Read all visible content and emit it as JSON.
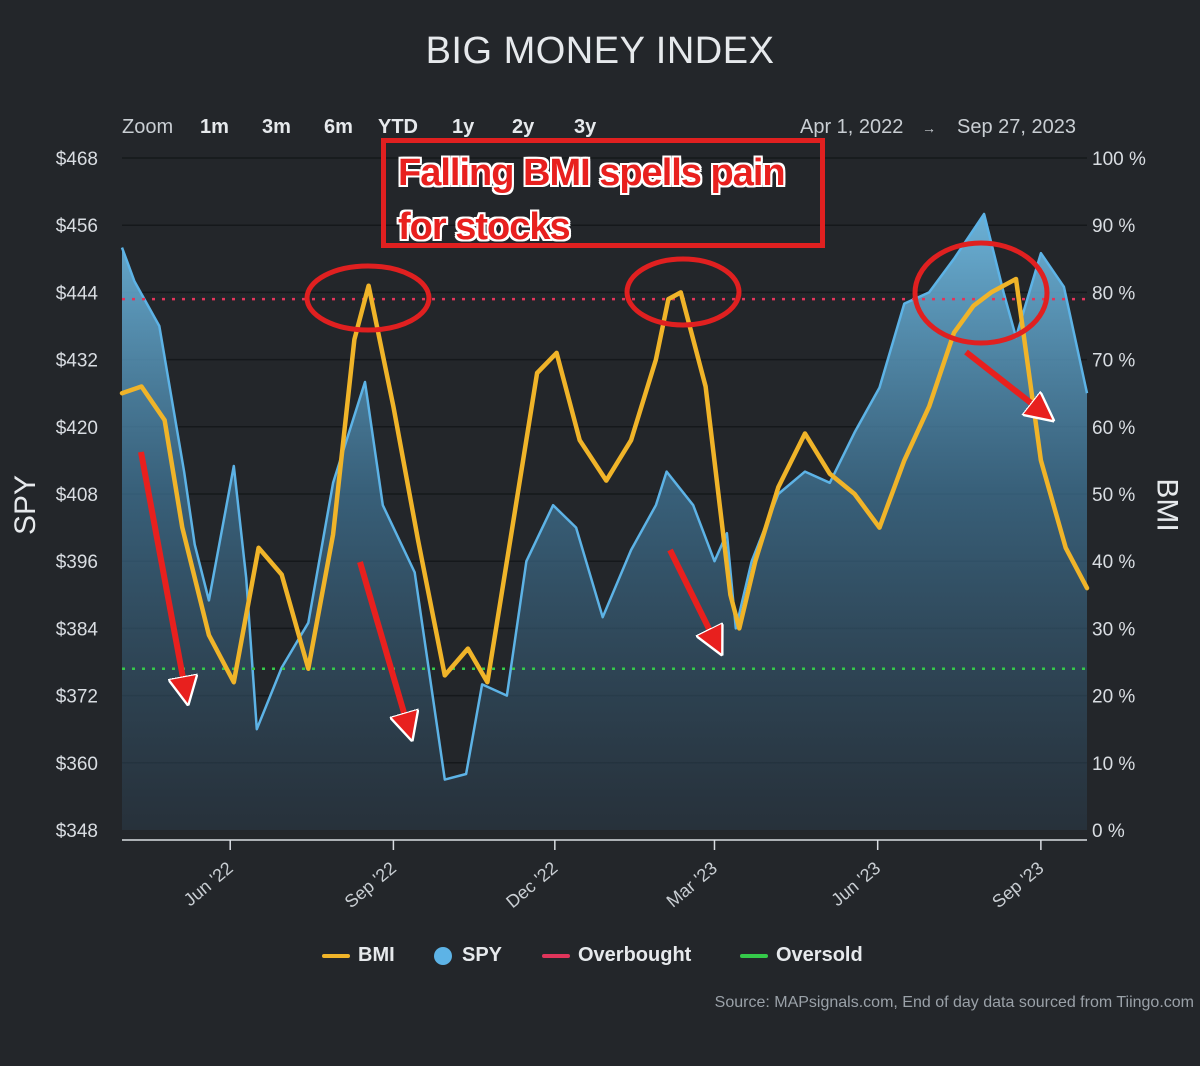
{
  "title": "BIG MONEY INDEX",
  "zoom": {
    "label": "Zoom",
    "buttons": [
      "1m",
      "3m",
      "6m",
      "YTD",
      "1y",
      "2y",
      "3y"
    ]
  },
  "date_range": {
    "from": "Apr 1, 2022",
    "arrow": "→",
    "to": "Sep 27, 2023"
  },
  "annotation": {
    "line1": "Falling BMI spells pain",
    "line2": "for stocks"
  },
  "source": "Source: MAPsignals.com, End of day data sourced from Tiingo.com",
  "colors": {
    "background": "#23262a",
    "bmi": "#f0b429",
    "spy": "#5db3e6",
    "overbought": "#e0355b",
    "oversold": "#35c94a",
    "annotation": "#e02020"
  },
  "chart_data": {
    "type": "line",
    "title": "BIG MONEY INDEX",
    "ylabel_left": "SPY",
    "ylabel_right": "BMI",
    "x_ticks": [
      "Jun '22",
      "Sep '22",
      "Dec '22",
      "Mar '23",
      "Jun '23",
      "Sep '23"
    ],
    "x_range": [
      "2022-04-01",
      "2023-09-27"
    ],
    "y_left_ticks": [
      "$468",
      "$456",
      "$444",
      "$432",
      "$420",
      "$408",
      "$396",
      "$384",
      "$372",
      "$360",
      "$348"
    ],
    "y_left_range": [
      348,
      468
    ],
    "y_right_ticks": [
      "100 %",
      "90 %",
      "80 %",
      "70 %",
      "60 %",
      "50 %",
      "40 %",
      "30 %",
      "20 %",
      "10 %",
      "0 %"
    ],
    "y_right_range": [
      0,
      100
    ],
    "overbought": 79,
    "oversold": 24,
    "legend": [
      "BMI",
      "SPY",
      "Overbought",
      "Oversold"
    ],
    "legend_position": "bottom",
    "grid": true,
    "series": [
      {
        "name": "BMI",
        "axis": "right",
        "dates": [
          "2022-04-01",
          "2022-04-12",
          "2022-04-25",
          "2022-05-05",
          "2022-05-20",
          "2022-06-03",
          "2022-06-17",
          "2022-06-30",
          "2022-07-15",
          "2022-07-29",
          "2022-08-10",
          "2022-08-18",
          "2022-09-01",
          "2022-09-15",
          "2022-09-30",
          "2022-10-13",
          "2022-10-24",
          "2022-11-07",
          "2022-11-21",
          "2022-12-02",
          "2022-12-15",
          "2022-12-30",
          "2023-01-13",
          "2023-01-27",
          "2023-02-03",
          "2023-02-10",
          "2023-02-24",
          "2023-03-10",
          "2023-03-15",
          "2023-03-24",
          "2023-04-06",
          "2023-04-21",
          "2023-05-05",
          "2023-05-19",
          "2023-06-02",
          "2023-06-16",
          "2023-06-30",
          "2023-07-14",
          "2023-07-25",
          "2023-08-04",
          "2023-08-18",
          "2023-09-01",
          "2023-09-15",
          "2023-09-27"
        ],
        "values": [
          65,
          66,
          61,
          45,
          29,
          22,
          42,
          38,
          24,
          44,
          73,
          81,
          63,
          43,
          23,
          27,
          22,
          45,
          68,
          71,
          58,
          52,
          58,
          70,
          79,
          80,
          66,
          35,
          30,
          40,
          51,
          59,
          53,
          50,
          45,
          55,
          63,
          74,
          78,
          80,
          82,
          55,
          42,
          36
        ]
      },
      {
        "name": "SPY",
        "axis": "left",
        "dates": [
          "2022-04-01",
          "2022-04-08",
          "2022-04-22",
          "2022-05-06",
          "2022-05-12",
          "2022-05-20",
          "2022-06-03",
          "2022-06-10",
          "2022-06-16",
          "2022-06-30",
          "2022-07-15",
          "2022-07-29",
          "2022-08-16",
          "2022-08-26",
          "2022-09-13",
          "2022-09-30",
          "2022-10-12",
          "2022-10-21",
          "2022-11-04",
          "2022-11-15",
          "2022-11-30",
          "2022-12-13",
          "2022-12-28",
          "2023-01-13",
          "2023-01-27",
          "2023-02-02",
          "2023-02-17",
          "2023-03-01",
          "2023-03-08",
          "2023-03-13",
          "2023-03-22",
          "2023-04-06",
          "2023-04-21",
          "2023-05-05",
          "2023-05-19",
          "2023-06-02",
          "2023-06-16",
          "2023-06-30",
          "2023-07-14",
          "2023-07-31",
          "2023-08-11",
          "2023-08-18",
          "2023-09-01",
          "2023-09-14",
          "2023-09-27"
        ],
        "values": [
          452,
          446,
          438,
          412,
          399,
          389,
          413,
          393,
          366,
          377,
          385,
          410,
          428,
          406,
          394,
          357,
          358,
          374,
          372,
          396,
          406,
          402,
          386,
          398,
          406,
          412,
          406,
          396,
          401,
          384,
          396,
          408,
          412,
          410,
          419,
          427,
          442,
          444,
          450,
          458,
          444,
          436,
          451,
          445,
          426
        ]
      }
    ]
  }
}
